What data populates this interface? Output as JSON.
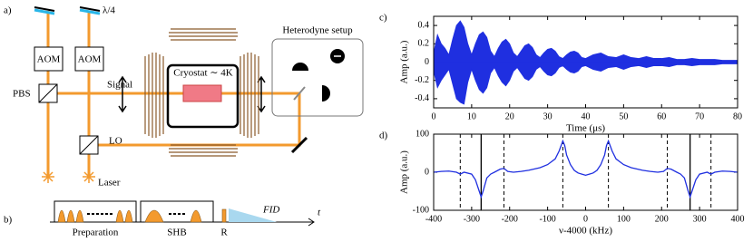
{
  "diagram": {
    "panel_a": "a)",
    "panel_b": "b)",
    "waveplate": "λ/4",
    "aom_1": "AOM",
    "aom_2": "AOM",
    "pbs": "PBS",
    "signal": "Signal",
    "cryostat": "Cryostat ∼ 4K",
    "heterodyne": "Heterodyne setup",
    "lo": "LO",
    "laser": "Laser",
    "preparation": "Preparation",
    "shb": "SHB",
    "r": "R",
    "fid": "FID",
    "t": "t"
  },
  "chart_data": [
    {
      "type": "area",
      "panel": "c)",
      "ylabel": "Amp (a.u.)",
      "xlabel": "Time (μs)",
      "color": "#1f2fe0",
      "x": [
        0,
        1,
        2,
        3,
        4,
        5,
        6,
        7,
        8,
        9,
        10,
        11,
        12,
        13,
        14,
        15,
        16,
        17,
        18,
        19,
        20,
        21,
        22,
        23,
        24,
        25,
        26,
        27,
        28,
        29,
        30,
        31,
        32,
        33,
        34,
        35,
        36,
        37,
        38,
        39,
        40,
        42,
        44,
        46,
        48,
        50,
        52,
        54,
        56,
        58,
        60,
        62,
        64,
        66,
        68,
        70,
        72,
        74,
        76,
        78,
        80
      ],
      "series": [
        {
          "values": [
            0.1,
            0.3,
            0.2,
            0.15,
            0.08,
            0.25,
            0.4,
            0.45,
            0.38,
            0.2,
            0.08,
            0.2,
            0.3,
            0.33,
            0.27,
            0.12,
            0.06,
            0.15,
            0.22,
            0.25,
            0.2,
            0.1,
            0.06,
            0.12,
            0.18,
            0.2,
            0.16,
            0.08,
            0.05,
            0.1,
            0.14,
            0.15,
            0.12,
            0.06,
            0.04,
            0.08,
            0.11,
            0.12,
            0.1,
            0.05,
            0.04,
            0.08,
            0.1,
            0.06,
            0.05,
            0.08,
            0.05,
            0.04,
            0.06,
            0.04,
            0.04,
            0.05,
            0.03,
            0.03,
            0.04,
            0.03,
            0.03,
            0.03,
            0.02,
            0.02,
            0.02
          ]
        },
        {
          "values": [
            -0.1,
            -0.28,
            -0.2,
            -0.14,
            -0.08,
            -0.24,
            -0.4,
            -0.44,
            -0.46,
            -0.22,
            -0.08,
            -0.2,
            -0.3,
            -0.34,
            -0.28,
            -0.12,
            -0.06,
            -0.15,
            -0.22,
            -0.26,
            -0.2,
            -0.1,
            -0.06,
            -0.12,
            -0.18,
            -0.2,
            -0.16,
            -0.08,
            -0.05,
            -0.1,
            -0.14,
            -0.15,
            -0.12,
            -0.06,
            -0.04,
            -0.08,
            -0.11,
            -0.12,
            -0.1,
            -0.05,
            -0.04,
            -0.08,
            -0.1,
            -0.06,
            -0.05,
            -0.08,
            -0.05,
            -0.04,
            -0.06,
            -0.04,
            -0.04,
            -0.05,
            -0.03,
            -0.03,
            -0.04,
            -0.03,
            -0.03,
            -0.03,
            -0.02,
            -0.02,
            -0.02
          ]
        }
      ],
      "xlim": [
        0,
        80
      ],
      "xticks": [
        0,
        10,
        20,
        30,
        40,
        50,
        60,
        70,
        80
      ],
      "ylim": [
        -0.5,
        0.5
      ],
      "yticks": [
        -0.4,
        -0.2,
        0,
        0.2,
        0.4
      ]
    },
    {
      "type": "line",
      "panel": "d)",
      "ylabel": "Amp (a.u.)",
      "xlabel": "ν-4000 (kHz)",
      "color": "#1f2fe0",
      "x": [
        -400,
        -380,
        -360,
        -340,
        -330,
        -320,
        -300,
        -290,
        -280,
        -275,
        -270,
        -260,
        -250,
        -240,
        -225,
        -215,
        -205,
        -190,
        -170,
        -150,
        -120,
        -100,
        -80,
        -70,
        -60,
        -55,
        -50,
        -40,
        -30,
        -20,
        -10,
        0,
        10,
        20,
        30,
        40,
        50,
        55,
        60,
        70,
        80,
        100,
        120,
        150,
        170,
        190,
        205,
        215,
        225,
        240,
        250,
        260,
        270,
        275,
        280,
        290,
        300,
        320,
        330,
        340,
        360,
        380,
        400
      ],
      "series": [
        {
          "values": [
            0,
            2,
            3,
            0,
            -5,
            0,
            -5,
            -20,
            -50,
            -65,
            -50,
            -15,
            -5,
            0,
            8,
            10,
            2,
            0,
            2,
            5,
            12,
            20,
            35,
            55,
            82,
            70,
            45,
            20,
            5,
            -2,
            -5,
            -8,
            -5,
            -2,
            5,
            20,
            45,
            70,
            82,
            55,
            35,
            20,
            12,
            5,
            2,
            0,
            2,
            10,
            8,
            0,
            -5,
            -15,
            -50,
            -65,
            -50,
            -20,
            -5,
            0,
            -5,
            0,
            3,
            2,
            0
          ]
        }
      ],
      "vlines": [
        {
          "x": -330,
          "style": "dashed"
        },
        {
          "x": -275,
          "style": "solid"
        },
        {
          "x": -215,
          "style": "dashed"
        },
        {
          "x": -60,
          "style": "dashed"
        },
        {
          "x": 60,
          "style": "dashed"
        },
        {
          "x": 215,
          "style": "dashed"
        },
        {
          "x": 275,
          "style": "solid"
        },
        {
          "x": 330,
          "style": "dashed"
        }
      ],
      "xlim": [
        -400,
        400
      ],
      "xticks": [
        -400,
        -300,
        -200,
        -100,
        0,
        100,
        200,
        300,
        400
      ],
      "ylim": [
        -100,
        100
      ],
      "yticks": [
        -100,
        0,
        100
      ]
    }
  ]
}
